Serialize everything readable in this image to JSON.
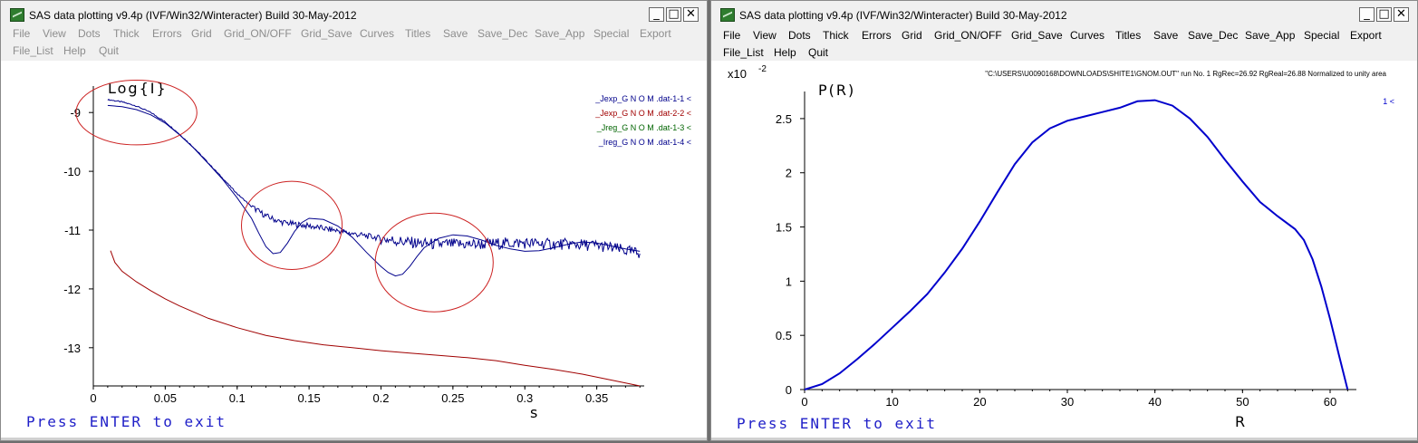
{
  "left_window": {
    "title": "SAS data plotting v9.4p  (IVF/Win32/Winteracter)  Build 30-May-2012",
    "controls": {
      "minimize": "_",
      "maximize": "□",
      "close": "✕"
    },
    "menu_row1": [
      "File",
      "View",
      "Dots",
      "Thick",
      "Errors",
      "Grid",
      "Grid_ON/OFF",
      "Grid_Save",
      "Curves",
      "Titles",
      "Save",
      "Save_Dec",
      "Save_App",
      "Special",
      "Export"
    ],
    "menu_row2": [
      "File_List",
      "Help",
      "Quit"
    ],
    "exit_text": "Press ENTER to exit",
    "chart_data": {
      "type": "line",
      "title": "Log{I}",
      "xlabel": "s",
      "ylabel": "",
      "xlim": [
        0,
        0.383
      ],
      "ylim": [
        -13.65,
        -8.55
      ],
      "xticks": [
        0,
        0.05,
        0.1,
        0.15,
        0.2,
        0.25,
        0.3,
        0.35
      ],
      "xtick_labels": [
        "0",
        "0.05",
        "0.1",
        "0.15",
        "0.2",
        "0.25",
        "0.3",
        "0.35"
      ],
      "yticks": [
        -9,
        -10,
        -11,
        -12,
        -13
      ],
      "ytick_labels": [
        "-9",
        "-10",
        "-11",
        "-12",
        "-13"
      ],
      "legend_placement": "top-right",
      "series": [
        {
          "name": "_Jexp_G N O M .dat-1-1 <",
          "color": "#00008b",
          "noisy": true,
          "x": [
            0.01,
            0.02,
            0.03,
            0.04,
            0.05,
            0.06,
            0.07,
            0.08,
            0.09,
            0.1,
            0.11,
            0.12,
            0.13,
            0.14,
            0.15,
            0.16,
            0.17,
            0.18,
            0.19,
            0.2,
            0.21,
            0.22,
            0.23,
            0.24,
            0.25,
            0.26,
            0.27,
            0.28,
            0.29,
            0.3,
            0.31,
            0.32,
            0.33,
            0.34,
            0.35,
            0.36,
            0.37,
            0.38
          ],
          "y": [
            -8.78,
            -8.82,
            -8.89,
            -9.0,
            -9.16,
            -9.37,
            -9.6,
            -9.86,
            -10.12,
            -10.38,
            -10.6,
            -10.76,
            -10.86,
            -10.9,
            -10.93,
            -10.97,
            -11.01,
            -11.06,
            -11.1,
            -11.14,
            -11.18,
            -11.21,
            -11.23,
            -11.24,
            -11.24,
            -11.24,
            -11.24,
            -11.23,
            -11.22,
            -11.22,
            -11.23,
            -11.24,
            -11.24,
            -11.25,
            -11.26,
            -11.3,
            -11.35,
            -11.4
          ]
        },
        {
          "name": "_Jexp_G N O M .dat-2-2 <",
          "color": "#a00000",
          "noisy": false,
          "x": [
            0.012,
            0.015,
            0.02,
            0.03,
            0.04,
            0.05,
            0.06,
            0.08,
            0.1,
            0.12,
            0.14,
            0.16,
            0.18,
            0.2,
            0.22,
            0.24,
            0.26,
            0.28,
            0.3,
            0.32,
            0.34,
            0.36,
            0.38
          ],
          "y": [
            -11.35,
            -11.55,
            -11.7,
            -11.88,
            -12.03,
            -12.17,
            -12.29,
            -12.5,
            -12.66,
            -12.79,
            -12.88,
            -12.95,
            -13.0,
            -13.05,
            -13.09,
            -13.13,
            -13.17,
            -13.22,
            -13.3,
            -13.37,
            -13.45,
            -13.55,
            -13.65
          ]
        },
        {
          "name": "_Jreg_G N O M .dat-1-3 <",
          "color": "#006400",
          "noisy": false,
          "x": [],
          "y": []
        },
        {
          "name": "_Ireg_G N O M .dat-1-4 <",
          "color": "#00008b",
          "noisy": false,
          "x": [
            0.01,
            0.02,
            0.03,
            0.04,
            0.05,
            0.06,
            0.07,
            0.08,
            0.09,
            0.1,
            0.11,
            0.115,
            0.12,
            0.125,
            0.13,
            0.135,
            0.14,
            0.145,
            0.15,
            0.16,
            0.17,
            0.18,
            0.19,
            0.2,
            0.205,
            0.21,
            0.215,
            0.22,
            0.225,
            0.23,
            0.24,
            0.25,
            0.26,
            0.27,
            0.28,
            0.29,
            0.3,
            0.31,
            0.32,
            0.33,
            0.34,
            0.35,
            0.36,
            0.37,
            0.38
          ],
          "y": [
            -8.88,
            -8.9,
            -8.95,
            -9.04,
            -9.18,
            -9.38,
            -9.61,
            -9.87,
            -10.14,
            -10.45,
            -10.8,
            -11.05,
            -11.28,
            -11.4,
            -11.38,
            -11.22,
            -11.02,
            -10.87,
            -10.8,
            -10.82,
            -10.93,
            -11.12,
            -11.38,
            -11.62,
            -11.72,
            -11.78,
            -11.75,
            -11.62,
            -11.45,
            -11.3,
            -11.14,
            -11.08,
            -11.1,
            -11.17,
            -11.26,
            -11.32,
            -11.36,
            -11.35,
            -11.3,
            -11.24,
            -11.2,
            -11.22,
            -11.27,
            -11.32,
            -11.36
          ]
        }
      ],
      "annotations": [
        {
          "type": "ellipse",
          "cx": 0.03,
          "cy": -9.0,
          "rx": 0.042,
          "ry": 0.55,
          "color": "#cc2222"
        },
        {
          "type": "ellipse",
          "cx": 0.138,
          "cy": -10.92,
          "rx": 0.035,
          "ry": 0.75,
          "color": "#cc2222"
        },
        {
          "type": "ellipse",
          "cx": 0.237,
          "cy": -11.55,
          "rx": 0.041,
          "ry": 0.84,
          "color": "#cc2222"
        }
      ]
    }
  },
  "right_window": {
    "title": "SAS data plotting v9.4p  (IVF/Win32/Winteracter)  Build 30-May-2012",
    "controls": {
      "minimize": "_",
      "maximize": "□",
      "close": "✕"
    },
    "menu_row1": [
      "File",
      "View",
      "Dots",
      "Thick",
      "Errors",
      "Grid",
      "Grid_ON/OFF",
      "Grid_Save",
      "Curves",
      "Titles",
      "Save",
      "Save_Dec",
      "Save_App",
      "Special",
      "Export"
    ],
    "menu_row2": [
      "File_List",
      "Help",
      "Quit"
    ],
    "exit_text": "Press ENTER to exit",
    "header_text": "\"C:\\USERS\\U0090168\\DOWNLOADS\\SHITE1\\GNOM.OUT\" run No. 1 RgRec=26.92 RgReal=26.88 Normalized to unity area",
    "scale_label": "x10",
    "scale_exp": "-2",
    "chart_data": {
      "type": "line",
      "title": "P(R)",
      "xlabel": "R",
      "ylabel": "",
      "xlim": [
        0,
        63
      ],
      "ylim": [
        0,
        2.75
      ],
      "xticks": [
        0,
        10,
        20,
        30,
        40,
        50,
        60
      ],
      "xtick_labels": [
        "0",
        "10",
        "20",
        "30",
        "40",
        "50",
        "60"
      ],
      "yticks": [
        0,
        0.5,
        1,
        1.5,
        2,
        2.5
      ],
      "ytick_labels": [
        "0",
        "0.5",
        "1",
        "1.5",
        "2",
        "2.5"
      ],
      "legend_placement": "top-right",
      "series": [
        {
          "name": "1 <",
          "color": "#0000cc",
          "x": [
            0,
            2,
            4,
            6,
            8,
            10,
            12,
            14,
            16,
            18,
            20,
            22,
            24,
            26,
            28,
            30,
            32,
            34,
            36,
            38,
            40,
            42,
            44,
            46,
            48,
            50,
            52,
            54,
            56,
            57,
            58,
            59,
            60,
            61,
            62
          ],
          "y": [
            0,
            0.05,
            0.15,
            0.28,
            0.42,
            0.57,
            0.72,
            0.88,
            1.08,
            1.3,
            1.55,
            1.82,
            2.08,
            2.28,
            2.41,
            2.48,
            2.52,
            2.56,
            2.6,
            2.66,
            2.67,
            2.62,
            2.5,
            2.33,
            2.12,
            1.92,
            1.73,
            1.6,
            1.48,
            1.38,
            1.2,
            0.95,
            0.65,
            0.32,
            0
          ]
        }
      ]
    }
  }
}
